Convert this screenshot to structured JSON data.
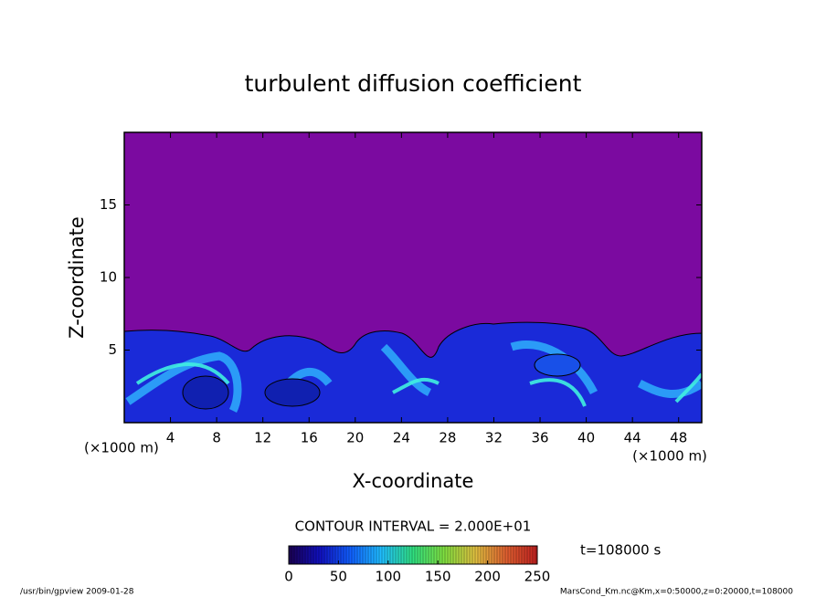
{
  "chart_data": {
    "type": "contour",
    "title": "turbulent diffusion coefficient",
    "x_label": "X-coordinate",
    "y_label": "Z-coordinate",
    "x_unit": "(×1000 m)",
    "y_unit": "(×1000 m)",
    "xlim": [
      0,
      50
    ],
    "xticks": [
      4,
      8,
      12,
      16,
      20,
      24,
      28,
      32,
      36,
      40,
      44,
      48
    ],
    "ylim": [
      0,
      20
    ],
    "yticks": [
      5,
      10,
      15
    ],
    "background_color": "#7b0aa0",
    "colorbar": {
      "lim": [
        0,
        250
      ],
      "ticks": [
        0,
        50,
        100,
        150,
        200,
        250
      ],
      "colors": [
        "#1a0050",
        "#1010c0",
        "#1060ff",
        "#20c0ff",
        "#30e080",
        "#80e040",
        "#e0c040",
        "#e06030",
        "#c02020"
      ]
    },
    "contour_interval": "CONTOUR INTERVAL = 2.000E+01",
    "time_label": "t=108000 s",
    "footer_left": "/usr/bin/gpview  2009-01-28",
    "footer_right": "MarsCond_Km.nc@Km,x=0:50000,z=0:20000,t=108000"
  }
}
